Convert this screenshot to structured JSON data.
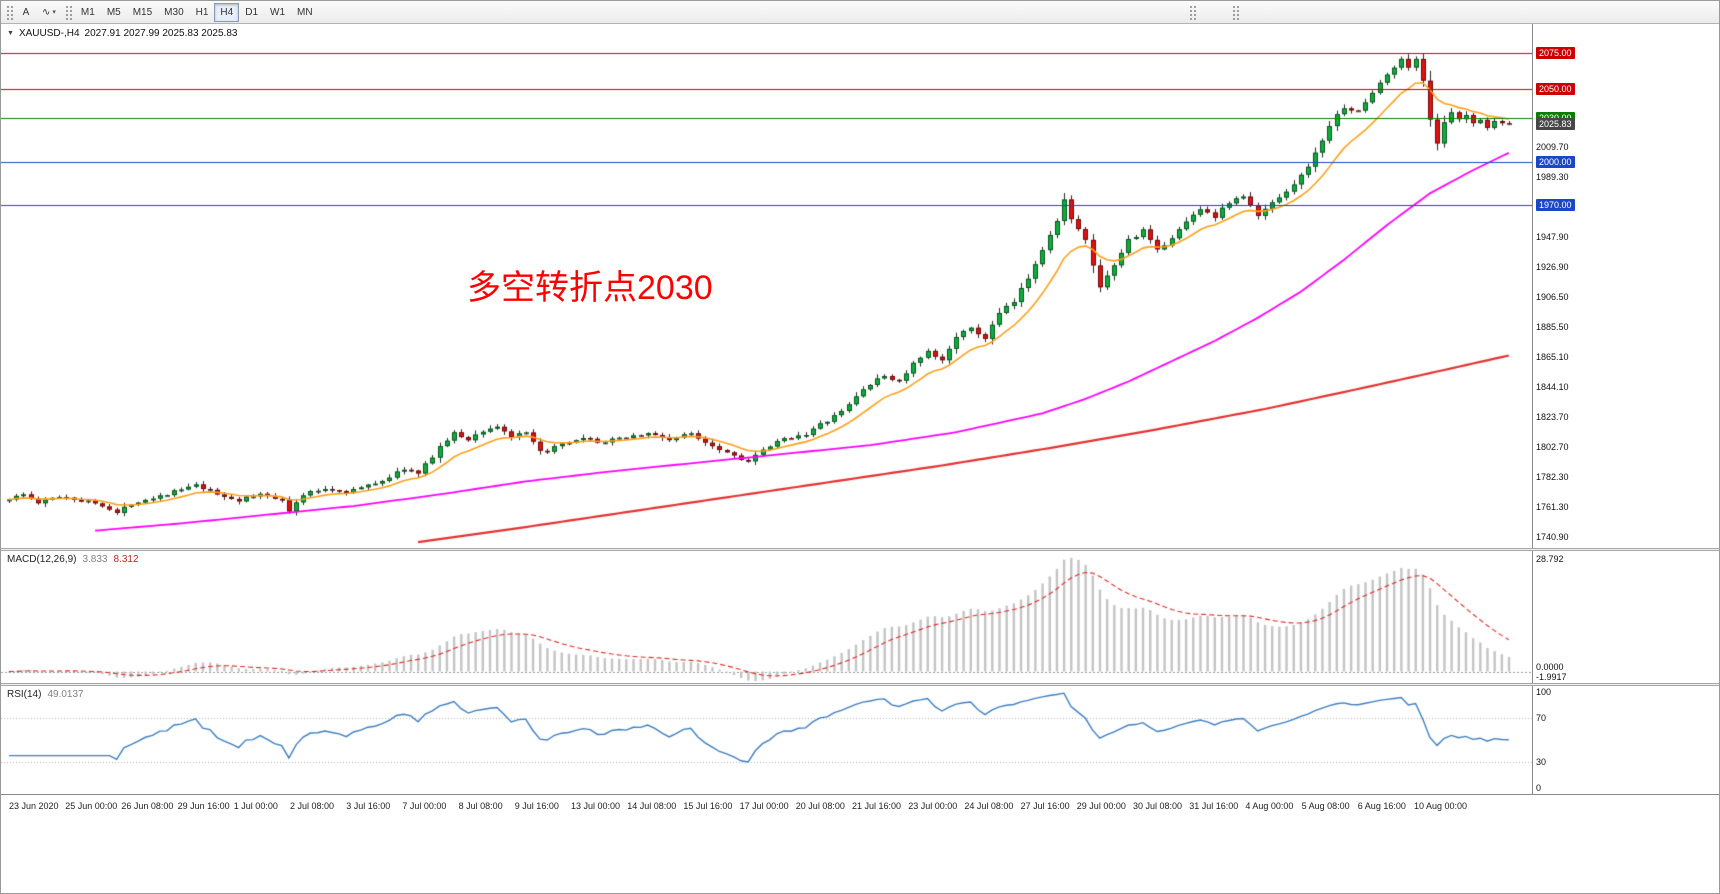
{
  "toolbar": {
    "annotate_label": "A",
    "drawing_tool_glyph": "∿",
    "timeframes": [
      {
        "label": "M1",
        "active": false
      },
      {
        "label": "M5",
        "active": false
      },
      {
        "label": "M15",
        "active": false
      },
      {
        "label": "M30",
        "active": false
      },
      {
        "label": "H1",
        "active": false
      },
      {
        "label": "H4",
        "active": true
      },
      {
        "label": "D1",
        "active": false
      },
      {
        "label": "W1",
        "active": false
      },
      {
        "label": "MN",
        "active": false
      }
    ]
  },
  "main_chart": {
    "collapse_arrow": "▼",
    "symbol_title": "XAUUSD-,H4",
    "ohlc_text": "2027.91 2027.99 2025.83 2025.83",
    "annotation": {
      "text": "多空转折点2030",
      "color": "#ff0000"
    },
    "levels": [
      {
        "value": 2075.0,
        "label": "2075.00",
        "color": "#cc0000"
      },
      {
        "value": 2050.0,
        "label": "2050.00",
        "color": "#cc0000"
      },
      {
        "value": 2030.0,
        "label": "2030.00",
        "color": "#0b7d00"
      },
      {
        "value": 2000.0,
        "label": "2000.00",
        "color": "#1c46c8"
      },
      {
        "value": 1970.0,
        "label": "1970.00",
        "color": "#1c46c8"
      }
    ],
    "current_price": {
      "value": 2025.83,
      "label": "2025.83",
      "bg": "#474747"
    },
    "scale_labels": [
      "2009.70",
      "1989.30",
      "1947.90",
      "1926.90",
      "1906.50",
      "1885.50",
      "1865.10",
      "1844.10",
      "1823.70",
      "1802.70",
      "1782.30",
      "1761.30",
      "1740.90"
    ],
    "price_min": 1733,
    "price_max": 2095
  },
  "macd": {
    "label": "MACD(12,26,9)",
    "value_main": "3.833",
    "value_signal": "8.312",
    "scale_top": "28.792",
    "scale_zero": "0.0000",
    "scale_bottom": "-1.9917",
    "histogram_color": "#c4c4c4",
    "signal_color": "#dd2a2a"
  },
  "rsi": {
    "label": "RSI(14)",
    "value": "49.0137",
    "color": "#3e7ec0",
    "scale_values": [
      100,
      70,
      30,
      0
    ],
    "level_lines": [
      70,
      30
    ]
  },
  "time_axis": [
    "23 Jun 2020",
    "25 Jun 00:00",
    "26 Jun 08:00",
    "29 Jun 16:00",
    "1 Jul 00:00",
    "2 Jul 08:00",
    "3 Jul 16:00",
    "7 Jul 00:00",
    "8 Jul 08:00",
    "9 Jul 16:00",
    "13 Jul 00:00",
    "14 Jul 08:00",
    "15 Jul 16:00",
    "17 Jul 00:00",
    "20 Jul 08:00",
    "21 Jul 16:00",
    "23 Jul 00:00",
    "24 Jul 08:00",
    "27 Jul 16:00",
    "29 Jul 00:00",
    "30 Jul 08:00",
    "31 Jul 16:00",
    "4 Aug 00:00",
    "5 Aug 08:00",
    "6 Aug 16:00",
    "10 Aug 00:00"
  ],
  "chart_data": {
    "type": "candlestick",
    "title": "XAUUSD- H4",
    "symbol": "XAUUSD-",
    "timeframe": "H4",
    "current_ohlc": {
      "open": 2027.91,
      "high": 2027.99,
      "low": 2025.83,
      "close": 2025.83
    },
    "x_range": [
      "23 Jun 2020",
      "10 Aug 2020"
    ],
    "y_range": [
      1733,
      2095
    ],
    "candle_count": 210,
    "bull_color": "#0fae3c",
    "bear_color": "#e11212",
    "wick_color": "#2a2a2a",
    "price_anchors": [
      [
        0,
        1766
      ],
      [
        3,
        1770
      ],
      [
        5,
        1764
      ],
      [
        8,
        1769
      ],
      [
        11,
        1766
      ],
      [
        14,
        1763
      ],
      [
        16,
        1757
      ],
      [
        18,
        1764
      ],
      [
        21,
        1768
      ],
      [
        24,
        1772
      ],
      [
        27,
        1776
      ],
      [
        30,
        1770
      ],
      [
        33,
        1766
      ],
      [
        36,
        1770
      ],
      [
        39,
        1767
      ],
      [
        40,
        1758
      ],
      [
        42,
        1770
      ],
      [
        45,
        1774
      ],
      [
        48,
        1772
      ],
      [
        51,
        1776
      ],
      [
        54,
        1782
      ],
      [
        56,
        1788
      ],
      [
        58,
        1784
      ],
      [
        61,
        1803
      ],
      [
        63,
        1812
      ],
      [
        65,
        1808
      ],
      [
        67,
        1814
      ],
      [
        69,
        1817
      ],
      [
        71,
        1810
      ],
      [
        73,
        1812
      ],
      [
        75,
        1799
      ],
      [
        78,
        1804
      ],
      [
        81,
        1808
      ],
      [
        84,
        1806
      ],
      [
        87,
        1810
      ],
      [
        90,
        1812
      ],
      [
        93,
        1808
      ],
      [
        96,
        1812
      ],
      [
        99,
        1804
      ],
      [
        102,
        1797
      ],
      [
        104,
        1793
      ],
      [
        106,
        1800
      ],
      [
        108,
        1806
      ],
      [
        110,
        1810
      ],
      [
        112,
        1812
      ],
      [
        114,
        1818
      ],
      [
        117,
        1827
      ],
      [
        120,
        1843
      ],
      [
        123,
        1852
      ],
      [
        125,
        1848
      ],
      [
        127,
        1860
      ],
      [
        129,
        1868
      ],
      [
        131,
        1862
      ],
      [
        133,
        1880
      ],
      [
        135,
        1884
      ],
      [
        137,
        1878
      ],
      [
        139,
        1895
      ],
      [
        141,
        1903
      ],
      [
        143,
        1920
      ],
      [
        145,
        1940
      ],
      [
        147,
        1958
      ],
      [
        148,
        1975
      ],
      [
        149,
        1960
      ],
      [
        151,
        1945
      ],
      [
        153,
        1912
      ],
      [
        155,
        1928
      ],
      [
        157,
        1946
      ],
      [
        159,
        1952
      ],
      [
        161,
        1938
      ],
      [
        163,
        1948
      ],
      [
        165,
        1958
      ],
      [
        167,
        1968
      ],
      [
        169,
        1962
      ],
      [
        171,
        1972
      ],
      [
        173,
        1976
      ],
      [
        175,
        1962
      ],
      [
        177,
        1972
      ],
      [
        179,
        1980
      ],
      [
        181,
        1990
      ],
      [
        183,
        2005
      ],
      [
        185,
        2025
      ],
      [
        187,
        2038
      ],
      [
        189,
        2034
      ],
      [
        191,
        2048
      ],
      [
        193,
        2060
      ],
      [
        195,
        2070
      ],
      [
        196,
        2066
      ],
      [
        197,
        2070
      ],
      [
        198,
        2056
      ],
      [
        199,
        2030
      ],
      [
        200,
        2013
      ],
      [
        201,
        2026
      ],
      [
        202,
        2034
      ],
      [
        203,
        2028
      ],
      [
        204,
        2032
      ],
      [
        205,
        2026
      ],
      [
        206,
        2030
      ],
      [
        207,
        2024
      ],
      [
        208,
        2028
      ],
      [
        209,
        2026
      ]
    ],
    "ma_fast": {
      "color": "#ff9f1a",
      "period": 10
    },
    "ma_mid": {
      "color": "#ff00ff",
      "anchors": [
        [
          12,
          1745
        ],
        [
          24,
          1750
        ],
        [
          36,
          1756
        ],
        [
          48,
          1762
        ],
        [
          60,
          1770
        ],
        [
          72,
          1779
        ],
        [
          84,
          1786
        ],
        [
          96,
          1792
        ],
        [
          108,
          1798
        ],
        [
          120,
          1804
        ],
        [
          132,
          1813
        ],
        [
          144,
          1826
        ],
        [
          150,
          1836
        ],
        [
          156,
          1848
        ],
        [
          162,
          1862
        ],
        [
          168,
          1876
        ],
        [
          174,
          1892
        ],
        [
          180,
          1910
        ],
        [
          186,
          1932
        ],
        [
          192,
          1956
        ],
        [
          198,
          1978
        ],
        [
          204,
          1994
        ],
        [
          209,
          2006
        ]
      ]
    },
    "ma_slow": {
      "color": "#e53232",
      "anchors": [
        [
          57,
          1737
        ],
        [
          70,
          1746
        ],
        [
          85,
          1757
        ],
        [
          100,
          1768
        ],
        [
          115,
          1779
        ],
        [
          130,
          1790
        ],
        [
          145,
          1802
        ],
        [
          160,
          1815
        ],
        [
          175,
          1829
        ],
        [
          190,
          1845
        ],
        [
          200,
          1856
        ],
        [
          209,
          1866
        ]
      ]
    }
  }
}
